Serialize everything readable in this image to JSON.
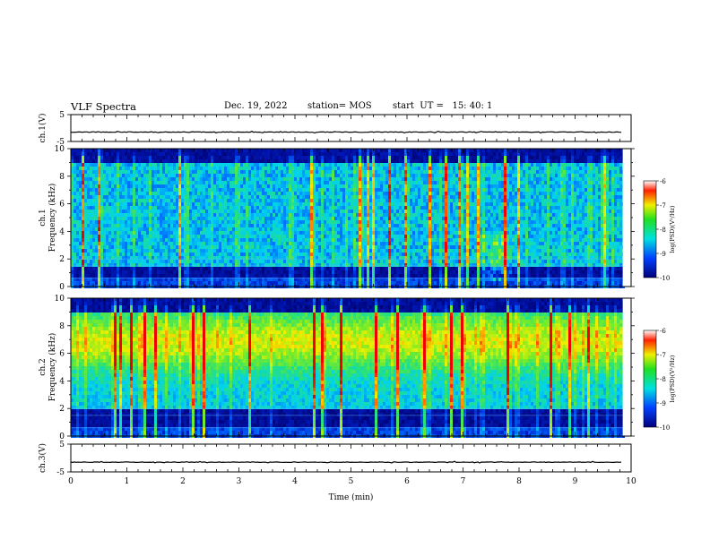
{
  "header": {
    "title": "VLF Spectra",
    "date": "Dec. 19, 2022",
    "station": "station= MOS",
    "start": "start  UT =   15: 40: 1"
  },
  "chart_data": {
    "type": "heatmap",
    "title": "VLF Spectra",
    "panels": [
      {
        "id": "ch1-waveform",
        "kind": "line",
        "ylabel": "ch.1(V)",
        "ylim": [
          -5,
          5
        ],
        "yticks": [
          "5",
          "-5"
        ],
        "trace_level_v": -1.5
      },
      {
        "id": "ch1-spectrogram",
        "kind": "heatmap",
        "ylabel_line1": "ch.1",
        "ylabel_line2": "Frequency (kHz)",
        "ylim": [
          0,
          10
        ],
        "yticks": [
          "0",
          "2",
          "4",
          "6",
          "8",
          "10"
        ],
        "features": {
          "band_khz": [
            1.5,
            9
          ],
          "hiss_center_min": 7.6,
          "hiss_band_khz": [
            0.5,
            4
          ]
        },
        "colorbar": {
          "label": "log(PSD)(V²/Hz)",
          "ticks": [
            "-6",
            "-7",
            "-8",
            "-9",
            "-10"
          ],
          "range": [
            -10,
            -6
          ]
        }
      },
      {
        "id": "ch2-spectrogram",
        "kind": "heatmap",
        "ylabel_line1": "ch.2",
        "ylabel_line2": "Frequency (kHz)",
        "ylim": [
          0,
          10
        ],
        "yticks": [
          "0",
          "2",
          "4",
          "6",
          "8",
          "10"
        ],
        "features": {
          "band_khz": [
            2,
            9
          ],
          "peak_khz": 7
        },
        "colorbar": {
          "label": "log(PSD)(V²/Hz)",
          "ticks": [
            "-6",
            "-7",
            "-8",
            "-9",
            "-10"
          ],
          "range": [
            -10,
            -6
          ]
        }
      },
      {
        "id": "ch3-waveform",
        "kind": "line",
        "ylabel": "ch.3(V)",
        "ylim": [
          -5,
          5
        ],
        "yticks": [
          "5",
          "-5"
        ],
        "trace_level_v": -1.5
      }
    ],
    "x": {
      "label": "Time  (min)",
      "ticks": [
        "0",
        "1",
        "2",
        "3",
        "4",
        "5",
        "6",
        "7",
        "8",
        "9",
        "10"
      ],
      "range": [
        0,
        10
      ],
      "data_end_min": 9.85
    }
  }
}
